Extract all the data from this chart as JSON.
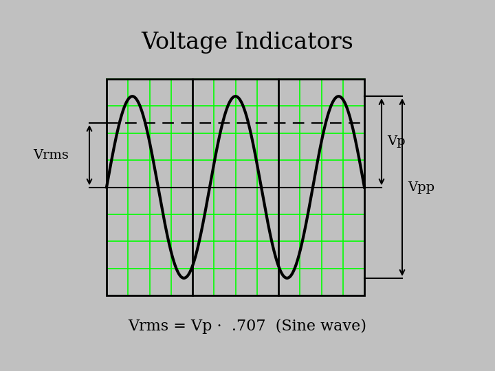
{
  "title": "Voltage Indicators",
  "formula": "Vrms = Vp ·  .707  (Sine wave)",
  "bg_color": "#c0c0c0",
  "grid_color": "#00ff00",
  "wave_color": "#000000",
  "title_fontsize": 24,
  "formula_fontsize": 16,
  "label_fontsize": 14,
  "vrms_level": 0.707,
  "num_cycles": 2.5,
  "wave_lw": 3.0,
  "n_hlines": 8,
  "n_vlines": 12,
  "n_thick_vlines": 2
}
